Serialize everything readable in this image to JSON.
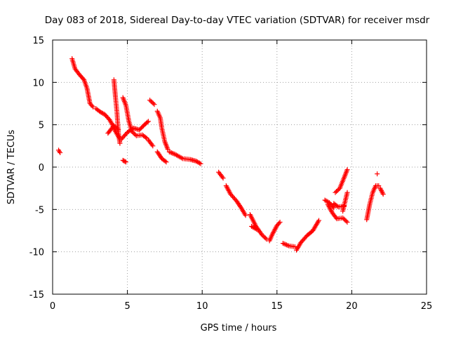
{
  "chart_data": {
    "type": "scatter",
    "title": "Day 083 of 2018, Sidereal Day-to-day VTEC variation (SDTVAR) for receiver msdr",
    "xlabel": "GPS time / hours",
    "ylabel": "SDTVAR / TECUs",
    "xlim": [
      0,
      25
    ],
    "ylim": [
      -15,
      15
    ],
    "xticks": [
      0,
      5,
      10,
      15,
      20,
      25
    ],
    "yticks": [
      -15,
      -10,
      -5,
      0,
      5,
      10,
      15
    ],
    "xtick_labels": [
      "0",
      "5",
      "10",
      "15",
      "20",
      "25"
    ],
    "ytick_labels": [
      "-15",
      "-10",
      "-5",
      "0",
      "5",
      "10",
      "15"
    ],
    "grid": true,
    "marker": "+",
    "color": "#ff0000",
    "series": [
      {
        "name": "SDTVAR",
        "segments": [
          [
            [
              0.4,
              2.0
            ],
            [
              0.5,
              1.7
            ]
          ],
          [
            [
              1.3,
              12.8
            ],
            [
              1.5,
              11.6
            ],
            [
              1.8,
              10.9
            ],
            [
              2.1,
              10.3
            ],
            [
              2.3,
              9.3
            ],
            [
              2.5,
              7.5
            ],
            [
              2.7,
              7.1
            ]
          ],
          [
            [
              2.9,
              6.9
            ],
            [
              3.2,
              6.5
            ],
            [
              3.5,
              6.2
            ],
            [
              3.8,
              5.6
            ],
            [
              4.0,
              5.0
            ],
            [
              4.2,
              4.2
            ],
            [
              4.5,
              3.3
            ]
          ],
          [
            [
              3.7,
              4.0
            ],
            [
              4.1,
              4.9
            ],
            [
              4.4,
              4.4
            ]
          ],
          [
            [
              4.1,
              10.3
            ],
            [
              4.2,
              8.3
            ],
            [
              4.3,
              6.5
            ],
            [
              4.4,
              4.0
            ],
            [
              4.5,
              2.8
            ]
          ],
          [
            [
              4.6,
              3.3
            ],
            [
              5.0,
              4.1
            ],
            [
              5.4,
              4.6
            ],
            [
              5.8,
              4.4
            ],
            [
              6.2,
              5.1
            ],
            [
              6.4,
              5.4
            ]
          ],
          [
            [
              4.7,
              8.2
            ],
            [
              4.9,
              7.3
            ],
            [
              5.1,
              5.4
            ],
            [
              5.3,
              4.2
            ],
            [
              5.6,
              3.7
            ],
            [
              6.0,
              3.8
            ],
            [
              6.3,
              3.4
            ]
          ],
          [
            [
              4.7,
              0.8
            ],
            [
              4.9,
              0.6
            ]
          ],
          [
            [
              6.4,
              3.2
            ],
            [
              6.7,
              2.5
            ]
          ],
          [
            [
              6.5,
              7.9
            ],
            [
              6.8,
              7.4
            ]
          ],
          [
            [
              7.0,
              6.6
            ],
            [
              7.2,
              5.8
            ],
            [
              7.3,
              4.6
            ],
            [
              7.5,
              3.0
            ],
            [
              7.7,
              2.1
            ]
          ],
          [
            [
              7.0,
              1.8
            ],
            [
              7.3,
              1.0
            ],
            [
              7.6,
              0.6
            ]
          ],
          [
            [
              7.8,
              1.8
            ],
            [
              8.2,
              1.5
            ],
            [
              8.7,
              1.0
            ],
            [
              9.2,
              0.9
            ],
            [
              9.6,
              0.7
            ],
            [
              9.9,
              0.4
            ]
          ],
          [
            [
              11.1,
              -0.6
            ],
            [
              11.4,
              -1.3
            ]
          ],
          [
            [
              11.6,
              -2.2
            ],
            [
              11.9,
              -3.2
            ],
            [
              12.3,
              -4.0
            ],
            [
              12.6,
              -4.8
            ],
            [
              12.9,
              -5.7
            ]
          ],
          [
            [
              13.2,
              -5.6
            ],
            [
              13.6,
              -7.0
            ],
            [
              14.0,
              -8.0
            ],
            [
              14.3,
              -8.5
            ]
          ],
          [
            [
              13.3,
              -7.0
            ],
            [
              13.7,
              -7.4
            ]
          ],
          [
            [
              14.5,
              -8.7
            ],
            [
              14.7,
              -7.9
            ],
            [
              15.0,
              -6.9
            ],
            [
              15.2,
              -6.5
            ]
          ],
          [
            [
              15.4,
              -9.0
            ],
            [
              15.8,
              -9.3
            ],
            [
              16.2,
              -9.4
            ]
          ],
          [
            [
              16.3,
              -9.8
            ],
            [
              16.6,
              -8.9
            ],
            [
              17.0,
              -8.1
            ],
            [
              17.4,
              -7.5
            ],
            [
              17.8,
              -6.3
            ]
          ],
          [
            [
              18.2,
              -3.9
            ],
            [
              18.5,
              -4.2
            ],
            [
              18.8,
              -4.8
            ]
          ],
          [
            [
              18.4,
              -4.4
            ],
            [
              18.7,
              -5.4
            ],
            [
              19.0,
              -6.1
            ],
            [
              19.4,
              -6.0
            ],
            [
              19.7,
              -6.5
            ]
          ],
          [
            [
              18.9,
              -3.0
            ],
            [
              19.2,
              -2.5
            ],
            [
              19.5,
              -1.2
            ],
            [
              19.7,
              -0.3
            ]
          ],
          [
            [
              18.8,
              -4.3
            ],
            [
              19.1,
              -4.7
            ],
            [
              19.5,
              -4.6
            ]
          ],
          [
            [
              19.4,
              -5.2
            ],
            [
              19.7,
              -3.0
            ]
          ],
          [
            [
              21.0,
              -6.2
            ],
            [
              21.2,
              -4.4
            ],
            [
              21.4,
              -3.0
            ],
            [
              21.6,
              -2.2
            ],
            [
              21.8,
              -2.2
            ]
          ],
          [
            [
              21.7,
              -0.8
            ]
          ],
          [
            [
              21.9,
              -2.5
            ],
            [
              22.1,
              -3.2
            ]
          ]
        ]
      }
    ]
  }
}
